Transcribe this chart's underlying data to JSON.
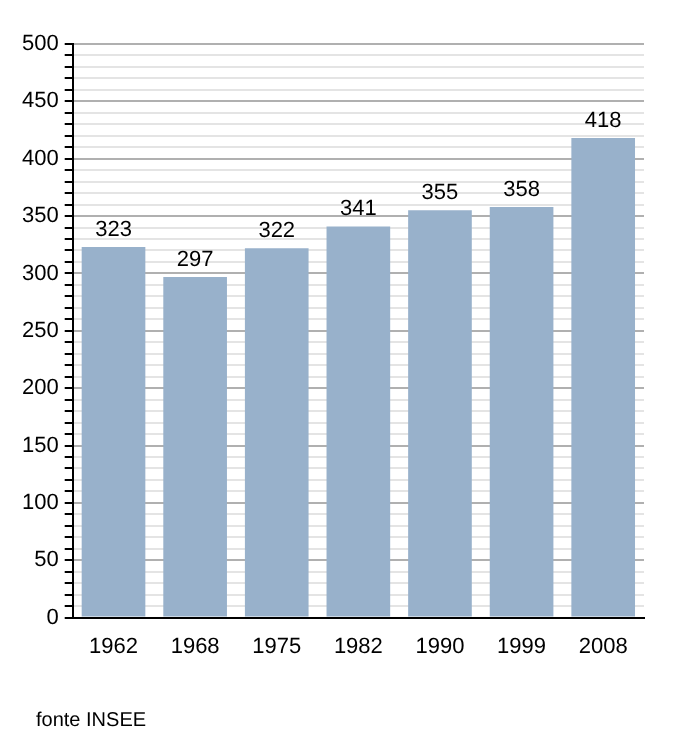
{
  "chart_data": {
    "type": "bar",
    "categories": [
      "1962",
      "1968",
      "1975",
      "1982",
      "1990",
      "1999",
      "2008"
    ],
    "values": [
      323,
      297,
      322,
      341,
      355,
      358,
      418
    ],
    "color": "#98b1cb",
    "data_labels": true,
    "ylim": [
      0,
      500
    ],
    "yticks": [
      0,
      {
        "value": 10,
        "label": null
      },
      {
        "value": 20,
        "label": null
      },
      {
        "value": 30,
        "label": null
      },
      {
        "value": 40,
        "label": null
      },
      50,
      {
        "value": 60,
        "label": null
      },
      {
        "value": 70,
        "label": null
      },
      {
        "value": 80,
        "label": null
      },
      {
        "value": 90,
        "label": null
      },
      100,
      {
        "value": 110,
        "label": null
      },
      {
        "value": 120,
        "label": null
      },
      {
        "value": 130,
        "label": null
      },
      {
        "value": 140,
        "label": null
      },
      150,
      {
        "value": 160,
        "label": null
      },
      {
        "value": 170,
        "label": null
      },
      {
        "value": 180,
        "label": null
      },
      {
        "value": 190,
        "label": null
      },
      200,
      {
        "value": 210,
        "label": null
      },
      {
        "value": 220,
        "label": null
      },
      {
        "value": 230,
        "label": null
      },
      {
        "value": 240,
        "label": null
      },
      250,
      {
        "value": 260,
        "label": null
      },
      {
        "value": 270,
        "label": null
      },
      {
        "value": 280,
        "label": null
      },
      {
        "value": 290,
        "label": null
      },
      300,
      {
        "value": 310,
        "label": null
      },
      {
        "value": 320,
        "label": null
      },
      {
        "value": 330,
        "label": null
      },
      {
        "value": 340,
        "label": null
      },
      350,
      {
        "value": 360,
        "label": null
      },
      {
        "value": 370,
        "label": null
      },
      {
        "value": 380,
        "label": null
      },
      {
        "value": 390,
        "label": null
      },
      400,
      {
        "value": 410,
        "label": null
      },
      {
        "value": 420,
        "label": null
      },
      {
        "value": 430,
        "label": null
      },
      {
        "value": 440,
        "label": null
      },
      450,
      {
        "value": 460,
        "label": null
      },
      {
        "value": 470,
        "label": null
      },
      {
        "value": 480,
        "label": null
      },
      {
        "value": 490,
        "label": null
      },
      500
    ],
    "grid": "y",
    "legend": false,
    "annotations": [
      "fonte INSEE"
    ]
  }
}
